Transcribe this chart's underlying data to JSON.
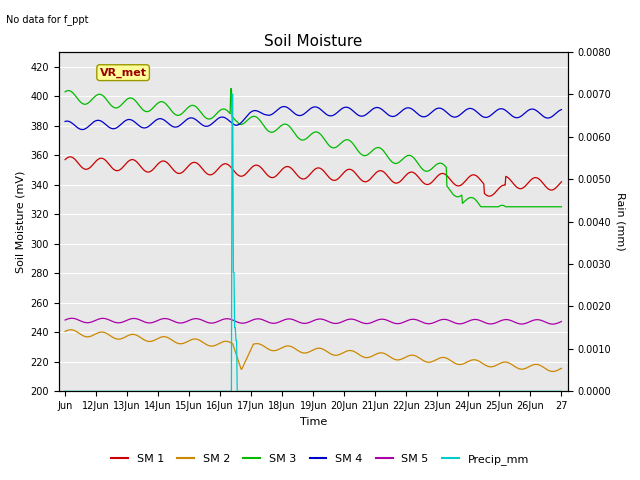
{
  "title": "Soil Moisture",
  "subtitle": "No data for f_ppt",
  "ylabel_left": "Soil Moisture (mV)",
  "ylabel_right": "Rain (mm)",
  "xlabel": "Time",
  "annotation": "VR_met",
  "ylim_left": [
    200,
    430
  ],
  "ylim_right": [
    0.0,
    0.008
  ],
  "x_tick_labels": [
    "Jun",
    "12Jun",
    "13Jun",
    "14Jun",
    "15Jun",
    "16Jun",
    "17Jun",
    "18Jun",
    "19Jun",
    "20Jun",
    "21Jun",
    "22Jun",
    "23Jun",
    "24Jun",
    "25Jun",
    "26Jun",
    "27"
  ],
  "legend_labels": [
    "SM 1",
    "SM 2",
    "SM 3",
    "SM 4",
    "SM 5",
    "Precip_mm"
  ],
  "sm1_color": "#cc0000",
  "sm2_color": "#cc8800",
  "sm3_color": "#00bb00",
  "sm4_color": "#0000cc",
  "sm5_color": "#aa00aa",
  "precip_color": "#00cccc",
  "bg_color": "#e8e8e8",
  "grid_color": "white",
  "title_fontsize": 11,
  "label_fontsize": 8,
  "tick_fontsize": 7,
  "legend_fontsize": 8
}
